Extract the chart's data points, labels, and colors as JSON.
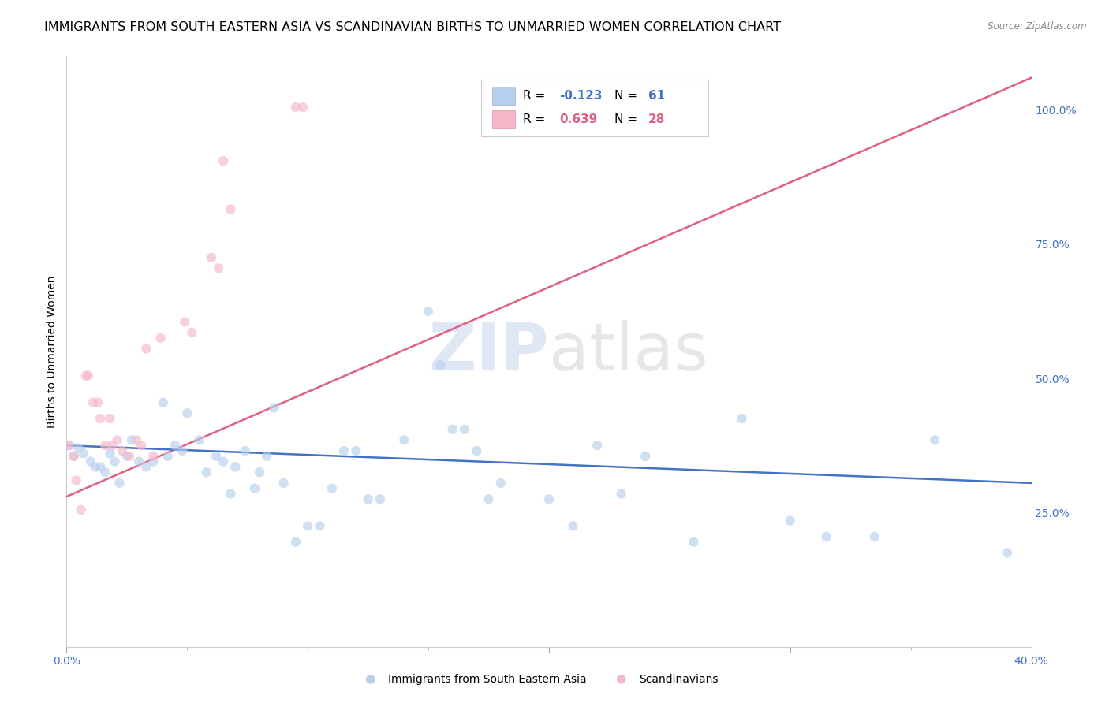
{
  "title": "IMMIGRANTS FROM SOUTH EASTERN ASIA VS SCANDINAVIAN BIRTHS TO UNMARRIED WOMEN CORRELATION CHART",
  "source": "Source: ZipAtlas.com",
  "ylabel": "Births to Unmarried Women",
  "x_min": 0.0,
  "x_max": 0.4,
  "y_min": 0.0,
  "y_max": 1.1,
  "y_ticks_right": [
    0.25,
    0.5,
    0.75,
    1.0
  ],
  "y_tick_labels_right": [
    "25.0%",
    "50.0%",
    "75.0%",
    "100.0%"
  ],
  "watermark": "ZIPatlas",
  "color_blue": "#b8d0ee",
  "color_pink": "#f5b8c8",
  "line_color_blue": "#4472c4",
  "line_color_pink": "#e06080",
  "label1": "Immigrants from South Eastern Asia",
  "label2": "Scandinavians",
  "blue_dots": [
    [
      0.001,
      0.375
    ],
    [
      0.003,
      0.355
    ],
    [
      0.005,
      0.37
    ],
    [
      0.007,
      0.36
    ],
    [
      0.01,
      0.345
    ],
    [
      0.012,
      0.335
    ],
    [
      0.014,
      0.335
    ],
    [
      0.016,
      0.325
    ],
    [
      0.018,
      0.36
    ],
    [
      0.02,
      0.345
    ],
    [
      0.022,
      0.305
    ],
    [
      0.025,
      0.355
    ],
    [
      0.027,
      0.385
    ],
    [
      0.03,
      0.345
    ],
    [
      0.033,
      0.335
    ],
    [
      0.036,
      0.345
    ],
    [
      0.04,
      0.455
    ],
    [
      0.042,
      0.355
    ],
    [
      0.045,
      0.375
    ],
    [
      0.048,
      0.365
    ],
    [
      0.05,
      0.435
    ],
    [
      0.055,
      0.385
    ],
    [
      0.058,
      0.325
    ],
    [
      0.062,
      0.355
    ],
    [
      0.065,
      0.345
    ],
    [
      0.068,
      0.285
    ],
    [
      0.07,
      0.335
    ],
    [
      0.074,
      0.365
    ],
    [
      0.078,
      0.295
    ],
    [
      0.08,
      0.325
    ],
    [
      0.083,
      0.355
    ],
    [
      0.086,
      0.445
    ],
    [
      0.09,
      0.305
    ],
    [
      0.095,
      0.195
    ],
    [
      0.1,
      0.225
    ],
    [
      0.105,
      0.225
    ],
    [
      0.11,
      0.295
    ],
    [
      0.115,
      0.365
    ],
    [
      0.12,
      0.365
    ],
    [
      0.125,
      0.275
    ],
    [
      0.13,
      0.275
    ],
    [
      0.14,
      0.385
    ],
    [
      0.15,
      0.625
    ],
    [
      0.155,
      0.525
    ],
    [
      0.16,
      0.405
    ],
    [
      0.165,
      0.405
    ],
    [
      0.17,
      0.365
    ],
    [
      0.175,
      0.275
    ],
    [
      0.18,
      0.305
    ],
    [
      0.2,
      0.275
    ],
    [
      0.21,
      0.225
    ],
    [
      0.22,
      0.375
    ],
    [
      0.23,
      0.285
    ],
    [
      0.24,
      0.355
    ],
    [
      0.26,
      0.195
    ],
    [
      0.28,
      0.425
    ],
    [
      0.3,
      0.235
    ],
    [
      0.315,
      0.205
    ],
    [
      0.335,
      0.205
    ],
    [
      0.36,
      0.385
    ],
    [
      0.39,
      0.175
    ]
  ],
  "pink_dots": [
    [
      0.001,
      0.375
    ],
    [
      0.003,
      0.355
    ],
    [
      0.004,
      0.31
    ],
    [
      0.006,
      0.255
    ],
    [
      0.008,
      0.505
    ],
    [
      0.009,
      0.505
    ],
    [
      0.011,
      0.455
    ],
    [
      0.013,
      0.455
    ],
    [
      0.014,
      0.425
    ],
    [
      0.016,
      0.375
    ],
    [
      0.018,
      0.425
    ],
    [
      0.019,
      0.375
    ],
    [
      0.021,
      0.385
    ],
    [
      0.023,
      0.365
    ],
    [
      0.026,
      0.355
    ],
    [
      0.029,
      0.385
    ],
    [
      0.031,
      0.375
    ],
    [
      0.033,
      0.555
    ],
    [
      0.036,
      0.355
    ],
    [
      0.039,
      0.575
    ],
    [
      0.049,
      0.605
    ],
    [
      0.052,
      0.585
    ],
    [
      0.06,
      0.725
    ],
    [
      0.063,
      0.705
    ],
    [
      0.065,
      0.905
    ],
    [
      0.068,
      0.815
    ],
    [
      0.095,
      1.005
    ],
    [
      0.098,
      1.005
    ]
  ],
  "blue_line_x": [
    0.0,
    0.4
  ],
  "blue_line_y": [
    0.375,
    0.305
  ],
  "pink_line_x": [
    -0.005,
    0.4
  ],
  "pink_line_y": [
    0.27,
    1.06
  ],
  "background_color": "#ffffff",
  "grid_color": "#dddddd",
  "title_fontsize": 11.5,
  "axis_label_fontsize": 10,
  "tick_fontsize": 10,
  "dot_size": 80,
  "dot_alpha": 0.65
}
